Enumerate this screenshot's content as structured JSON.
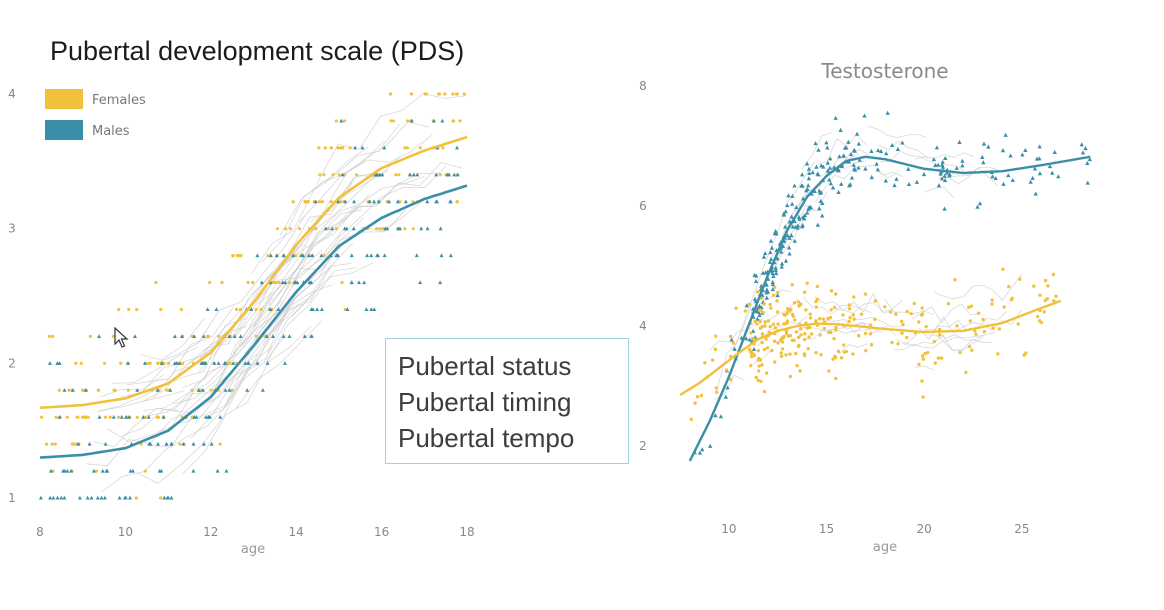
{
  "slide": {
    "title": "Pubertal development scale (PDS)",
    "notes": [
      "Pubertal status",
      "Pubertal timing",
      "Pubertal tempo"
    ]
  },
  "colors": {
    "females": "#f2c13b",
    "males": "#3b8ea8",
    "trajectories": "#c8c8c8"
  },
  "chart_data": [
    {
      "type": "scatter",
      "title": "",
      "xlabel": "age",
      "ylabel": "",
      "xlim": [
        8,
        18
      ],
      "ylim": [
        1,
        4
      ],
      "xticks": [
        "8",
        "10",
        "12",
        "14",
        "16",
        "18"
      ],
      "yticks": [
        "1",
        "2",
        "3",
        "4"
      ],
      "legend": {
        "position": "top-left",
        "entries": [
          "Females",
          "Males"
        ]
      },
      "grid": false,
      "series": [
        {
          "name": "Females",
          "marker": "circle",
          "fit": {
            "x": [
              8,
              9,
              10,
              11,
              12,
              13,
              14,
              15,
              16,
              17,
              18
            ],
            "y": [
              1.67,
              1.69,
              1.74,
              1.85,
              2.08,
              2.45,
              2.88,
              3.23,
              3.45,
              3.58,
              3.68
            ]
          }
        },
        {
          "name": "Males",
          "marker": "triangle",
          "fit": {
            "x": [
              8,
              9,
              10,
              11,
              12,
              13,
              14,
              15,
              16,
              17,
              18
            ],
            "y": [
              1.3,
              1.32,
              1.37,
              1.5,
              1.75,
              2.13,
              2.53,
              2.87,
              3.08,
              3.22,
              3.32
            ]
          }
        }
      ]
    },
    {
      "type": "scatter",
      "title": "Testosterone",
      "xlabel": "age",
      "ylabel": "",
      "xlim": [
        7.5,
        29
      ],
      "ylim": [
        1.8,
        8
      ],
      "xticks": [
        "10",
        "15",
        "20",
        "25"
      ],
      "yticks": [
        "2",
        "4",
        "6",
        "8"
      ],
      "grid": false,
      "series": [
        {
          "name": "Males",
          "marker": "triangle",
          "fit": {
            "x": [
              8,
              9,
              10,
              11,
              12,
              13,
              14,
              15,
              16,
              17,
              18,
              20,
              22,
              24,
              26,
              28.5
            ],
            "y": [
              1.75,
              2.4,
              3.15,
              4.0,
              4.85,
              5.6,
              6.15,
              6.5,
              6.75,
              6.82,
              6.78,
              6.62,
              6.55,
              6.58,
              6.68,
              6.82
            ]
          }
        },
        {
          "name": "Females",
          "marker": "circle",
          "fit": {
            "x": [
              7.5,
              8.5,
              9.5,
              10.5,
              11.5,
              12.5,
              13.5,
              14.5,
              15.5,
              16.5,
              18,
              20,
              22,
              24,
              26,
              27
            ],
            "y": [
              2.85,
              3.05,
              3.3,
              3.55,
              3.78,
              3.92,
              4.0,
              4.04,
              4.03,
              4.0,
              3.95,
              3.9,
              3.92,
              4.05,
              4.3,
              4.42
            ]
          }
        }
      ]
    }
  ]
}
